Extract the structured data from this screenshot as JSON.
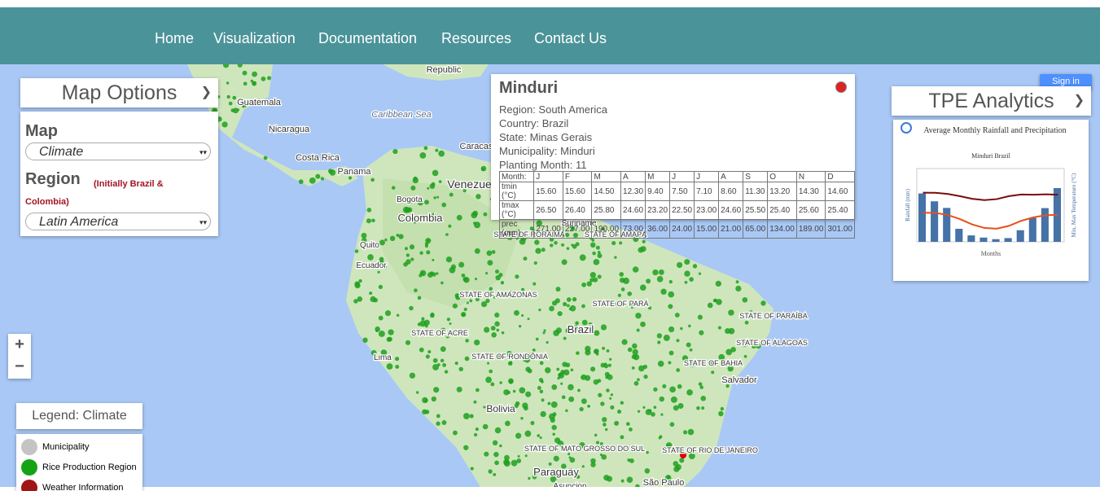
{
  "nav": [
    "Home",
    "Visualization",
    "Documentation",
    "Resources",
    "Contact Us"
  ],
  "sign_in": "Sign in",
  "zoom": [
    "+",
    "−"
  ],
  "map_options": {
    "title": "Map Options",
    "map_label": "Map",
    "map_select": "Climate",
    "region_label": "Region",
    "region_note": "(Initially Brazil & Colombia)",
    "region_select": "Latin America"
  },
  "popup": {
    "title": "Minduri",
    "fields": [
      "Region: South America",
      "Country: Brazil",
      "State: Minas Gerais",
      "Municipality: Minduri",
      "Planting Month: 11"
    ],
    "table": {
      "header": [
        "Month:",
        "J",
        "F",
        "M",
        "A",
        "M",
        "J",
        "J",
        "A",
        "S",
        "O",
        "N",
        "D"
      ],
      "rows": [
        [
          "tmin (°C)",
          "15.60",
          "15.60",
          "14.50",
          "12.30",
          "9.40",
          "7.50",
          "7.10",
          "8.60",
          "11.30",
          "13.20",
          "14.30",
          "14.60"
        ],
        [
          "tmax (°C)",
          "26.50",
          "26.40",
          "25.80",
          "24.60",
          "23.20",
          "22.50",
          "23.00",
          "24.60",
          "25.50",
          "25.40",
          "25.60",
          "25.40"
        ],
        [
          "prec (mm)",
          "271.00",
          "227.00",
          "190.00",
          "73.00",
          "36.00",
          "24.00",
          "15.00",
          "21.00",
          "65.00",
          "134.00",
          "189.00",
          "301.00"
        ]
      ]
    }
  },
  "tpe": {
    "title": "TPE Analytics",
    "chart_title": "Average Monthly Rainfall and Precipitation",
    "chart_subtitle": "Minduri Brazil",
    "y_label": "Rainfall (mm)",
    "y2_label": "Min, Max Temperature (°C)",
    "x_label": "Months"
  },
  "legend": {
    "title": "Legend: Climate",
    "items": [
      "Municipality",
      "Rice Production Region",
      "Weather Information"
    ]
  },
  "map_labels": [
    "Guatemala",
    "Nicaragua",
    "Costa Rica",
    "Panama",
    "Caribbean Sea",
    "Caracas",
    "Venezuela",
    "Bogota",
    "Colombia",
    "Quito",
    "Ecuador",
    "Lima",
    "Brazil",
    "Bolivia",
    "Paraguay",
    "Salvador",
    "STATE OF AMAZONAS",
    "STATE OF ACRE",
    "STATE OF RONDÔNIA",
    "STATE OF PARÁ",
    "STATE OF BAHIA",
    "STATE OF PARAÍBA",
    "STATE OF ALAGOAS",
    "STATE OF RIO DE JANEIRO",
    "STATE OF MATO GROSSO DO SUL",
    "STATE OF RORAIMA",
    "STATE OF AMAPÁ",
    "Republic",
    "Suriname",
    "Asuncion",
    "São Paulo"
  ]
}
